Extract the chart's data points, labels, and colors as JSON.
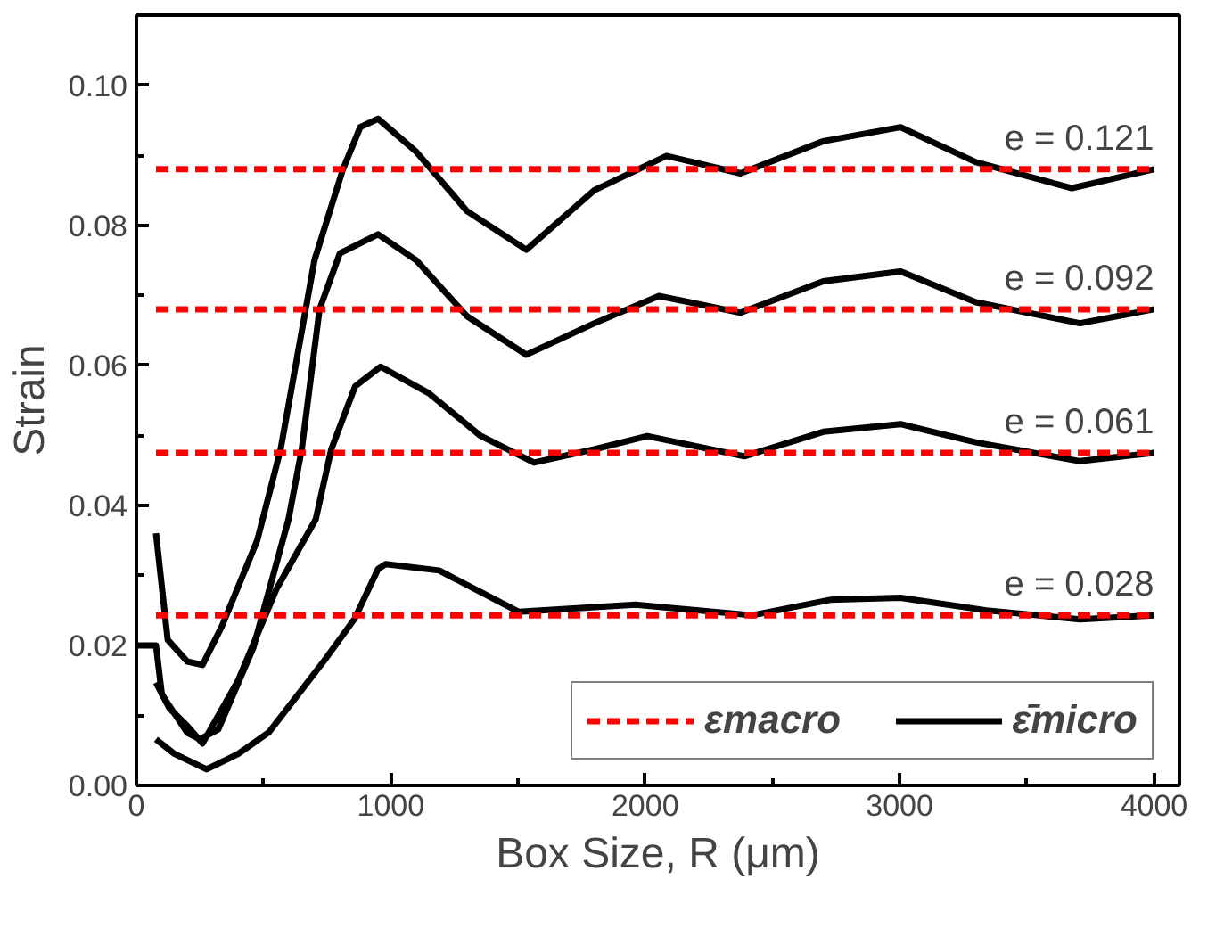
{
  "chart_data": {
    "type": "line",
    "xlabel": "Box Size, R (μm)",
    "ylabel": "Strain",
    "xlim": [
      0,
      4100
    ],
    "ylim": [
      0,
      0.11
    ],
    "xticks": [
      0,
      1000,
      2000,
      3000,
      4000
    ],
    "yticks": [
      {
        "value": 0,
        "label": "0.00"
      },
      {
        "value": 0.02,
        "label": "0.02"
      },
      {
        "value": 0.04,
        "label": "0.04"
      },
      {
        "value": 0.06,
        "label": "0.06"
      },
      {
        "value": 0.08,
        "label": "0.08"
      },
      {
        "value": 0.1,
        "label": "0.10"
      }
    ],
    "legend": "bottom right",
    "grid": false,
    "series": [
      {
        "name": "εmacro",
        "color": "#ff0000",
        "line_style": "dashed",
        "x": [
          77,
          4000
        ],
        "values": [
          0.088,
          0.088
        ]
      },
      {
        "color": "#ff0000",
        "line_style": "dashed",
        "x": [
          77,
          4000
        ],
        "values": [
          0.068,
          0.068
        ]
      },
      {
        "color": "#ff0000",
        "line_style": "dashed",
        "x": [
          77,
          4000
        ],
        "values": [
          0.0475,
          0.0475
        ]
      },
      {
        "color": "#ff0000",
        "line_style": "dashed",
        "x": [
          77,
          4000
        ],
        "values": [
          0.0243,
          0.0243
        ]
      },
      {
        "name": "ε̄micro",
        "color": "#000000",
        "line_style": "solid",
        "x": [
          77,
          123,
          200,
          260,
          337,
          475,
          567,
          700,
          812,
          880,
          950,
          1100,
          1300,
          1533,
          1800,
          2084,
          2375,
          2700,
          3004,
          3300,
          3678,
          4000
        ],
        "values": [
          0.036,
          0.0208,
          0.0177,
          0.0172,
          0.0228,
          0.035,
          0.048,
          0.075,
          0.088,
          0.094,
          0.0952,
          0.0905,
          0.082,
          0.0765,
          0.085,
          0.0899,
          0.0874,
          0.092,
          0.094,
          0.089,
          0.0853,
          0.088
        ]
      },
      {
        "color": "#000000",
        "line_style": "solid",
        "x": [
          0,
          77,
          100,
          200,
          250,
          322,
          460,
          598,
          650,
          720,
          800,
          950,
          1100,
          1300,
          1533,
          1800,
          2054,
          2375,
          2700,
          3004,
          3300,
          3709,
          4000
        ],
        "values": [
          0.02,
          0.02,
          0.013,
          0.0075,
          0.0066,
          0.008,
          0.0197,
          0.038,
          0.048,
          0.068,
          0.076,
          0.0787,
          0.075,
          0.067,
          0.0615,
          0.066,
          0.0699,
          0.0675,
          0.072,
          0.0734,
          0.069,
          0.066,
          0.068
        ]
      },
      {
        "color": "#000000",
        "line_style": "solid",
        "x": [
          77,
          130,
          200,
          260,
          400,
          550,
          705,
          766,
          860,
          960,
          1150,
          1350,
          1563,
          1800,
          2008,
          2390,
          2700,
          3004,
          3300,
          3709,
          4000
        ],
        "values": [
          0.0147,
          0.011,
          0.0085,
          0.006,
          0.015,
          0.028,
          0.038,
          0.048,
          0.057,
          0.0598,
          0.056,
          0.05,
          0.0461,
          0.048,
          0.0499,
          0.047,
          0.0505,
          0.0516,
          0.049,
          0.0463,
          0.0475
        ]
      },
      {
        "color": "#000000",
        "line_style": "solid",
        "x": [
          77,
          150,
          276,
          400,
          521,
          736,
          858,
          950,
          980,
          1190,
          1502,
          1962,
          2421,
          2727,
          3004,
          3341,
          3709,
          4000
        ],
        "values": [
          0.0066,
          0.0045,
          0.0023,
          0.0045,
          0.0076,
          0.0177,
          0.0238,
          0.0309,
          0.0316,
          0.0307,
          0.0248,
          0.0258,
          0.0243,
          0.0265,
          0.0268,
          0.025,
          0.0237,
          0.0243
        ]
      }
    ],
    "annotations": [
      "e = 0.121",
      "e = 0.092",
      "e = 0.061",
      "e = 0.028"
    ]
  }
}
